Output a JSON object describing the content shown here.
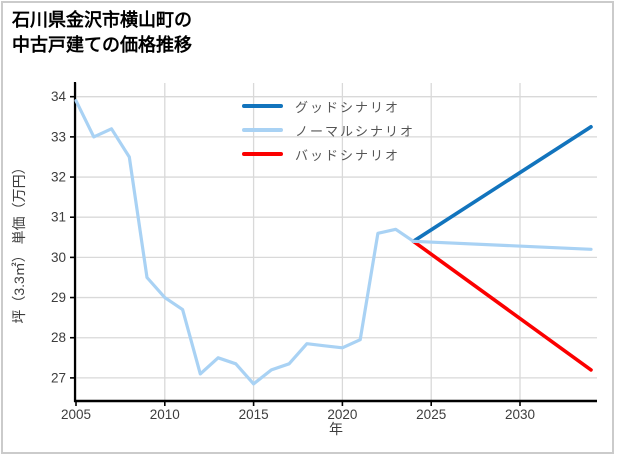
{
  "frame": {
    "border_color": "#cbcbcb"
  },
  "title": {
    "line1": "石川県金沢市横山町の",
    "line2": "中古戸建ての価格推移"
  },
  "axes": {
    "x_label": "年",
    "y_label": "坪（3.3㎡） 単価（万円）",
    "x_tick_labels": [
      "2005",
      "2010",
      "2015",
      "2020",
      "2025",
      "2030"
    ],
    "y_tick_labels": [
      "27",
      "28",
      "29",
      "30",
      "31",
      "32",
      "33",
      "34"
    ]
  },
  "legend": {
    "items": [
      {
        "label": "グッドシナリオ",
        "color": "#1274bd"
      },
      {
        "label": "ノーマルシナリオ",
        "color": "#a9d2f4"
      },
      {
        "label": "バッドシナリオ",
        "color": "#fb0000"
      }
    ]
  },
  "colors": {
    "grid": "#d9d9d9",
    "spine": "#000000",
    "tick_text": "#3d3d3d",
    "legend_text": "#555555",
    "good": "#1274bd",
    "normal": "#a9d2f4",
    "bad": "#fb0000"
  },
  "chart_data": {
    "type": "line",
    "title": "石川県金沢市横山町の中古戸建ての価格推移",
    "xlabel": "年",
    "ylabel": "坪（3.3㎡） 単価（万円）",
    "xlim": [
      2005,
      2034.4
    ],
    "ylim": [
      26.4,
      34.35
    ],
    "xticks": [
      2005,
      2010,
      2015,
      2020,
      2025,
      2030
    ],
    "yticks": [
      27,
      28,
      29,
      30,
      31,
      32,
      33,
      34
    ],
    "grid": true,
    "legend_position": "upper-center",
    "series": [
      {
        "name": "グッドシナリオ",
        "color": "#1274bd",
        "width": 3.6,
        "in_legend": true,
        "x": [
          2024,
          2034
        ],
        "y": [
          30.4,
          33.25
        ]
      },
      {
        "name": "バッドシナリオ",
        "color": "#fb0000",
        "width": 3.6,
        "in_legend": true,
        "x": [
          2024,
          2034
        ],
        "y": [
          30.4,
          27.2
        ]
      },
      {
        "name": "ノーマルシナリオ",
        "color": "#a9d2f4",
        "width": 3.2,
        "in_legend": true,
        "x": [
          2024,
          2034
        ],
        "y": [
          30.4,
          30.2
        ]
      },
      {
        "name": "history",
        "color": "#a9d2f4",
        "width": 3.2,
        "in_legend": false,
        "x": [
          2005,
          2006,
          2007,
          2008,
          2009,
          2010,
          2011,
          2012,
          2013,
          2014,
          2015,
          2016,
          2017,
          2018,
          2019,
          2020,
          2021,
          2022,
          2023,
          2024
        ],
        "y": [
          33.9,
          33.0,
          33.2,
          32.5,
          29.5,
          29.0,
          28.7,
          27.1,
          27.5,
          27.35,
          26.85,
          27.2,
          27.35,
          27.85,
          27.8,
          27.75,
          27.95,
          30.6,
          30.7,
          30.4
        ]
      }
    ]
  }
}
